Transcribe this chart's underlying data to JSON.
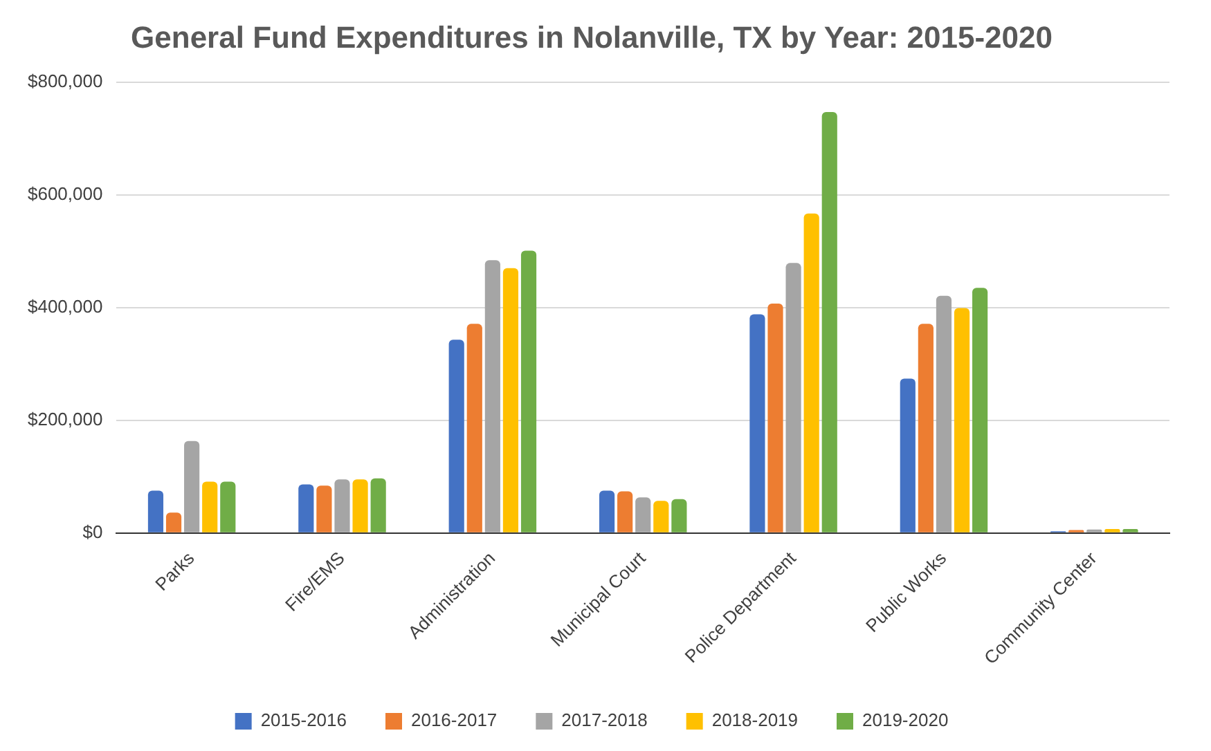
{
  "chart_data": {
    "type": "bar",
    "title": "General Fund Expenditures in Nolanville, TX by Year: 2015-2020",
    "categories": [
      "Parks",
      "Fire/EMS",
      "Administration",
      "Municipal Court",
      "Police Department",
      "Public Works",
      "Community Center"
    ],
    "series": [
      {
        "name": "2015-2016",
        "color": "#4472c4",
        "values": [
          75000,
          86000,
          343000,
          75000,
          388000,
          274000,
          3000
        ]
      },
      {
        "name": "2016-2017",
        "color": "#ed7d31",
        "values": [
          36000,
          84000,
          371000,
          74000,
          407000,
          371000,
          5000
        ]
      },
      {
        "name": "2017-2018",
        "color": "#a5a5a5",
        "values": [
          163000,
          95000,
          484000,
          63000,
          479000,
          421000,
          6000
        ]
      },
      {
        "name": "2018-2019",
        "color": "#ffc000",
        "values": [
          91000,
          95000,
          470000,
          57000,
          567000,
          399000,
          7000
        ]
      },
      {
        "name": "2019-2020",
        "color": "#70ad47",
        "values": [
          91000,
          97000,
          501000,
          60000,
          747000,
          435000,
          7000
        ]
      }
    ],
    "ylim": [
      0,
      800000
    ],
    "yticks": [
      {
        "value": 0,
        "label": "$0"
      },
      {
        "value": 200000,
        "label": "$200,000"
      },
      {
        "value": 400000,
        "label": "$400,000"
      },
      {
        "value": 600000,
        "label": "$600,000"
      },
      {
        "value": 800000,
        "label": "$800,000"
      }
    ],
    "grid": "y",
    "legend": "bottom"
  }
}
